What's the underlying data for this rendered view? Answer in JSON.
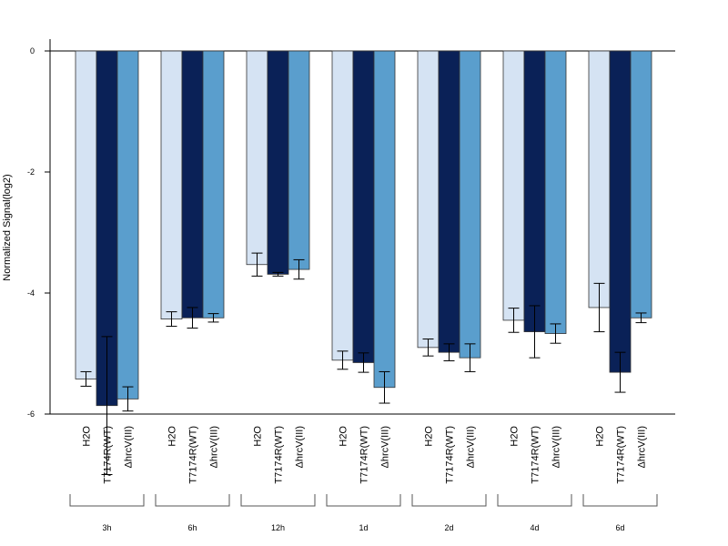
{
  "chart_data": {
    "type": "bar",
    "ylabel": "Normalized Signal(log2)",
    "ylim": [
      -6,
      0
    ],
    "yticks": [
      0,
      -2,
      -4,
      -6
    ],
    "series_labels": [
      "H2O",
      "T7174R(WT)",
      "ΔhrcV(III)"
    ],
    "groups": [
      "3h",
      "6h",
      "12h",
      "1d",
      "2d",
      "4d",
      "6d"
    ],
    "series": [
      {
        "name": "H2O",
        "color": "#d5e3f3",
        "values": [
          -5.42,
          -4.43,
          -3.53,
          -5.11,
          -4.9,
          -4.45,
          -4.24
        ],
        "error": [
          0.12,
          0.12,
          0.19,
          0.15,
          0.14,
          0.2,
          0.4
        ]
      },
      {
        "name": "T7174R(WT)",
        "color": "#0a2157",
        "values": [
          -5.86,
          -4.41,
          -3.69,
          -5.15,
          -4.98,
          -4.64,
          -5.31
        ],
        "error": [
          1.14,
          0.17,
          0.03,
          0.16,
          0.14,
          0.43,
          0.33
        ]
      },
      {
        "name": "ΔhrcV(III)",
        "color": "#5a9ecd",
        "values": [
          -5.75,
          -4.41,
          -3.61,
          -5.56,
          -5.07,
          -4.67,
          -4.41
        ],
        "error": [
          0.2,
          0.07,
          0.16,
          0.26,
          0.23,
          0.16,
          0.08
        ]
      }
    ]
  }
}
